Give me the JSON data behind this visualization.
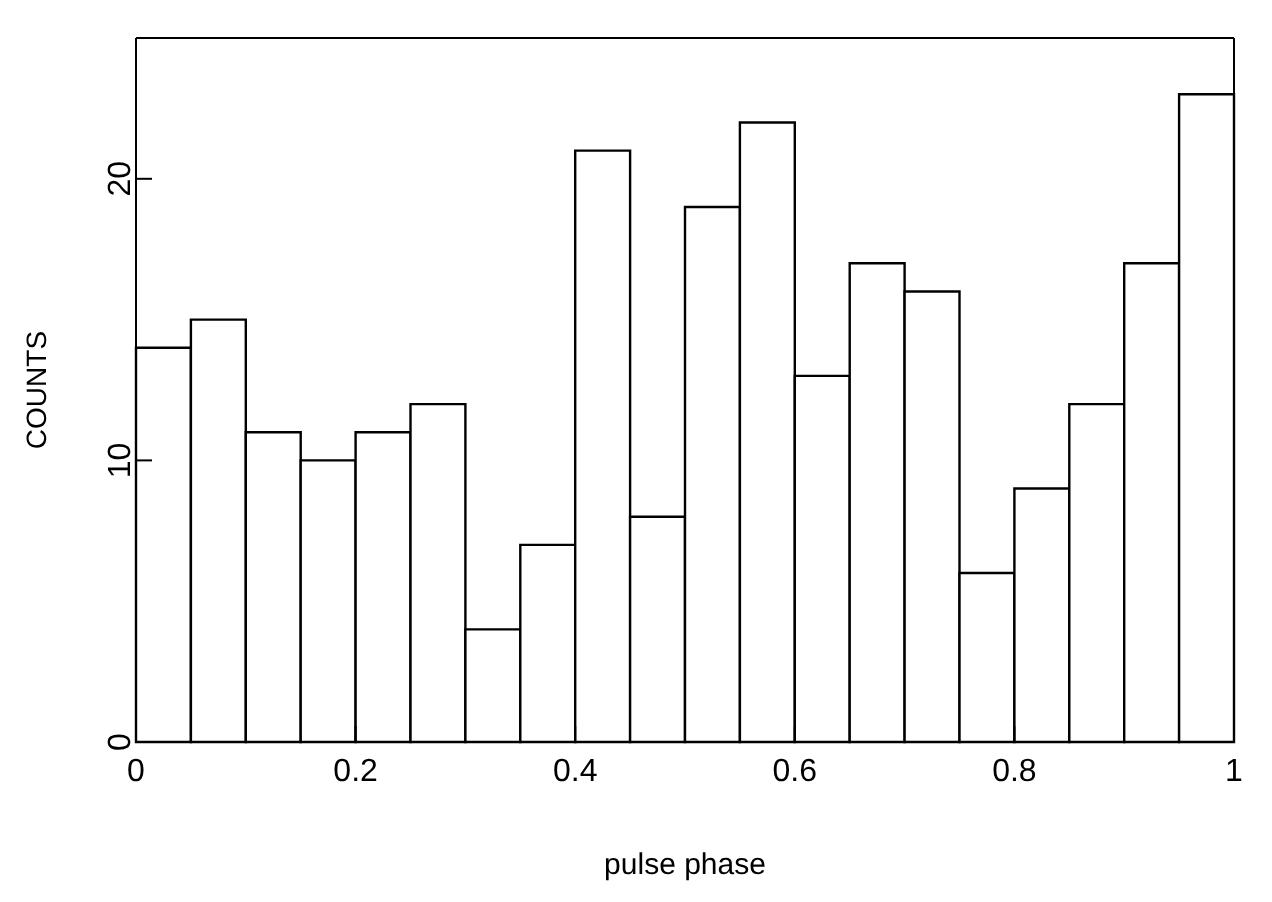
{
  "chart_data": {
    "type": "histogram",
    "xlabel": "pulse phase",
    "ylabel": "COUNTS",
    "bins": [
      0,
      0.05,
      0.1,
      0.15,
      0.2,
      0.25,
      0.3,
      0.35,
      0.4,
      0.45,
      0.5,
      0.55,
      0.6,
      0.65,
      0.7,
      0.75,
      0.8,
      0.85,
      0.9,
      0.95,
      1
    ],
    "values": [
      14,
      15,
      11,
      10,
      11,
      12,
      4,
      7,
      21,
      8,
      19,
      22,
      13,
      17,
      16,
      6,
      9,
      12,
      17,
      23
    ],
    "color": "#ffffff",
    "xlim": [
      0,
      1
    ],
    "xticks": [
      0,
      0.2,
      0.4,
      0.6,
      0.8,
      1
    ],
    "ylim": [
      0,
      25
    ],
    "yticks": [
      0,
      10,
      20
    ],
    "grid": false
  }
}
